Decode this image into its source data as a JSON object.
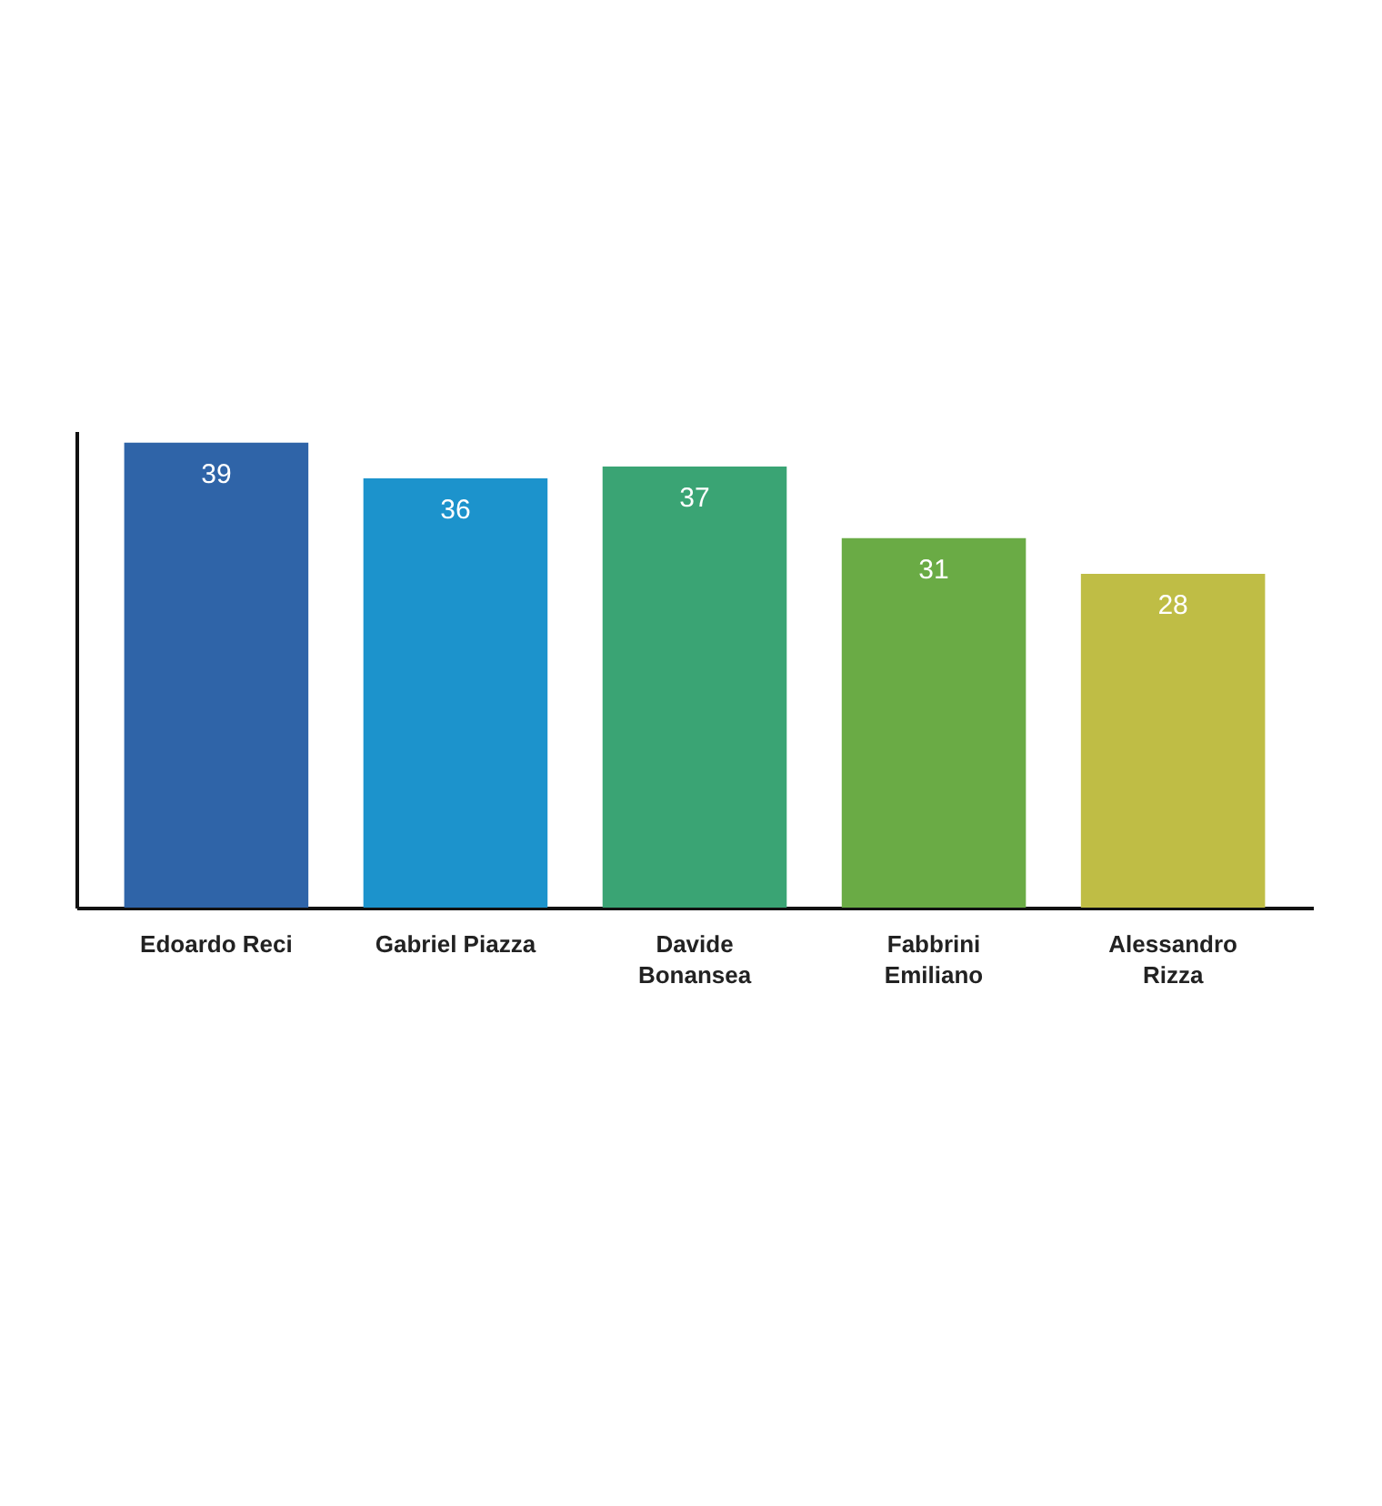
{
  "chart_data": {
    "type": "bar",
    "categories": [
      "Edoardo Reci",
      "Gabriel Piazza",
      "Davide Bonansea",
      "Fabbrini Emiliano",
      "Alessandro Rizza"
    ],
    "values": [
      39,
      36,
      37,
      31,
      28
    ],
    "colors": [
      "#2f64a8",
      "#1c93cc",
      "#3aa474",
      "#6aab45",
      "#bfbd45"
    ],
    "data_labels": true
  }
}
